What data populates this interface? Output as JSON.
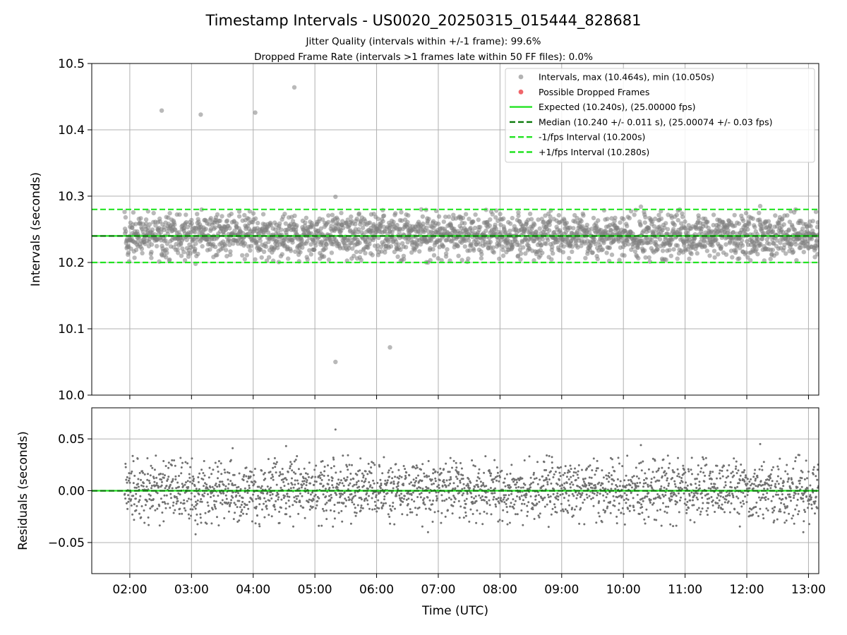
{
  "chart_data": [
    {
      "type": "scatter",
      "title": "Timestamp Intervals - US0020_20250315_015444_828681",
      "subtitle_lines": [
        "Jitter Quality (intervals within +/-1 frame): 99.6%",
        "Dropped Frame Rate (intervals >1 frames late within 50 FF files): 0.0%"
      ],
      "xlabel": "",
      "ylabel": "Intervals (seconds)",
      "xlim": [
        "01:23",
        "13:10"
      ],
      "ylim": [
        10.0,
        10.5
      ],
      "yticks": [
        "10.0",
        "10.1",
        "10.2",
        "10.3",
        "10.4",
        "10.5"
      ],
      "xticks": [
        "02:00",
        "03:00",
        "04:00",
        "05:00",
        "06:00",
        "07:00",
        "08:00",
        "09:00",
        "10:00",
        "11:00",
        "12:00",
        "13:00"
      ],
      "grid": true,
      "legend_position": "top-right",
      "series": [
        {
          "name": "Intervals, max (10.464s), min (10.050s)",
          "kind": "scatter",
          "color": "#808080",
          "x_range": [
            "01:55",
            "13:10"
          ],
          "band": [
            10.2,
            10.28
          ],
          "count": 2400,
          "outliers": [
            {
              "x": "02:31",
              "y": 10.429
            },
            {
              "x": "03:09",
              "y": 10.423
            },
            {
              "x": "04:02",
              "y": 10.426
            },
            {
              "x": "04:40",
              "y": 10.464
            },
            {
              "x": "05:20",
              "y": 10.05
            },
            {
              "x": "06:13",
              "y": 10.072
            },
            {
              "x": "05:20",
              "y": 10.299
            },
            {
              "x": "10:17",
              "y": 10.284
            },
            {
              "x": "12:13",
              "y": 10.285
            },
            {
              "x": "03:04",
              "y": 10.198
            },
            {
              "x": "06:50",
              "y": 10.2
            }
          ]
        },
        {
          "name": "Possible Dropped Frames",
          "kind": "scatter",
          "color": "#f0656a",
          "points": []
        },
        {
          "name": "Expected (10.240s), (25.00000 fps)",
          "kind": "hline",
          "y": 10.24,
          "color": "#22e322",
          "style": "solid"
        },
        {
          "name": "Median (10.240 +/- 0.011 s), (25.00074 +/- 0.03 fps)",
          "kind": "hline",
          "y": 10.2399,
          "color": "#0a7a0a",
          "style": "dashed"
        },
        {
          "name": "-1/fps Interval (10.200s)",
          "kind": "hline",
          "y": 10.2,
          "color": "#22e322",
          "style": "dashed"
        },
        {
          "name": "+1/fps Interval (10.280s)",
          "kind": "hline",
          "y": 10.28,
          "color": "#22e322",
          "style": "dashed"
        }
      ]
    },
    {
      "type": "scatter",
      "xlabel": "Time (UTC)",
      "ylabel": "Residuals (seconds)",
      "xlim": [
        "01:23",
        "13:10"
      ],
      "ylim": [
        -0.08,
        0.08
      ],
      "yticks": [
        "0.05",
        "0.00",
        "−0.05"
      ],
      "xticks": [
        "02:00",
        "03:00",
        "04:00",
        "05:00",
        "06:00",
        "07:00",
        "08:00",
        "09:00",
        "10:00",
        "11:00",
        "12:00",
        "13:00"
      ],
      "grid": true,
      "series": [
        {
          "kind": "scatter",
          "color": "#707070",
          "x_range": [
            "01:55",
            "13:10"
          ],
          "band": [
            -0.035,
            0.035
          ],
          "count": 2400,
          "outliers": [
            {
              "x": "05:20",
              "y": 0.059
            },
            {
              "x": "12:13",
              "y": 0.045
            },
            {
              "x": "10:17",
              "y": 0.044
            },
            {
              "x": "04:32",
              "y": 0.043
            },
            {
              "x": "03:40",
              "y": 0.041
            },
            {
              "x": "06:50",
              "y": -0.04
            },
            {
              "x": "03:04",
              "y": -0.042
            },
            {
              "x": "12:55",
              "y": -0.04
            }
          ]
        },
        {
          "kind": "hline",
          "y": 0.0,
          "color": "#22e322",
          "style": "solid"
        },
        {
          "kind": "hline",
          "y": -0.0001,
          "color": "#0a7a0a",
          "style": "dashed"
        }
      ]
    }
  ]
}
